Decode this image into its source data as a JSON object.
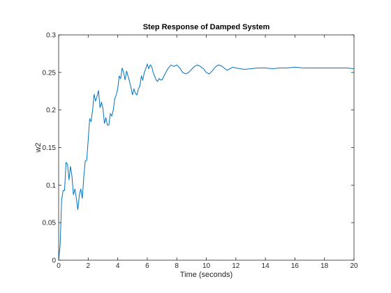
{
  "chart_data": {
    "type": "line",
    "title": "Step Response of Damped System",
    "xlabel": "Time (seconds)",
    "ylabel": "w2",
    "xlim": [
      0,
      20
    ],
    "ylim": [
      0,
      0.3
    ],
    "xticks": [
      0,
      2,
      4,
      6,
      8,
      10,
      12,
      14,
      16,
      18,
      20
    ],
    "yticks": [
      0,
      0.05,
      0.1,
      0.15,
      0.2,
      0.25,
      0.3
    ],
    "xtick_labels": [
      "0",
      "2",
      "4",
      "6",
      "8",
      "10",
      "12",
      "14",
      "16",
      "18",
      "20"
    ],
    "ytick_labels": [
      "0",
      "0.05",
      "0.1",
      "0.15",
      "0.2",
      "0.25",
      "0.3"
    ],
    "grid": false,
    "line_color": "#0072BD",
    "series": [
      {
        "x": [
          0,
          0.1,
          0.2,
          0.3,
          0.4,
          0.5,
          0.6,
          0.7,
          0.8,
          0.9,
          1.0,
          1.1,
          1.2,
          1.3,
          1.4,
          1.5,
          1.6,
          1.7,
          1.8,
          1.9,
          2.0,
          2.1,
          2.2,
          2.3,
          2.4,
          2.5,
          2.6,
          2.7,
          2.8,
          2.9,
          3.0,
          3.1,
          3.2,
          3.3,
          3.4,
          3.5,
          3.6,
          3.7,
          3.8,
          3.9,
          4.0,
          4.1,
          4.2,
          4.3,
          4.4,
          4.5,
          4.6,
          4.7,
          4.8,
          4.9,
          5.0,
          5.1,
          5.2,
          5.3,
          5.4,
          5.5,
          5.6,
          5.7,
          5.8,
          5.9,
          6.0,
          6.1,
          6.2,
          6.3,
          6.4,
          6.5,
          6.6,
          6.7,
          6.8,
          6.9,
          7.0,
          7.2,
          7.4,
          7.6,
          7.8,
          8.0,
          8.2,
          8.4,
          8.6,
          8.8,
          9.0,
          9.2,
          9.4,
          9.6,
          9.8,
          10.0,
          10.2,
          10.4,
          10.6,
          10.8,
          11.0,
          11.2,
          11.4,
          11.6,
          11.8,
          12.0,
          12.3,
          12.6,
          13.0,
          13.5,
          14.0,
          14.5,
          15.0,
          15.5,
          16.0,
          16.5,
          17.0,
          17.5,
          18.0,
          18.5,
          19.0,
          19.5,
          20.0
        ],
        "y": [
          0,
          0.02,
          0.08,
          0.093,
          0.093,
          0.13,
          0.128,
          0.107,
          0.125,
          0.112,
          0.087,
          0.095,
          0.082,
          0.067,
          0.087,
          0.095,
          0.082,
          0.11,
          0.132,
          0.133,
          0.16,
          0.188,
          0.185,
          0.2,
          0.221,
          0.212,
          0.218,
          0.226,
          0.203,
          0.21,
          0.202,
          0.182,
          0.19,
          0.18,
          0.18,
          0.195,
          0.192,
          0.2,
          0.215,
          0.22,
          0.228,
          0.245,
          0.242,
          0.256,
          0.25,
          0.24,
          0.252,
          0.245,
          0.238,
          0.23,
          0.22,
          0.228,
          0.222,
          0.22,
          0.228,
          0.232,
          0.245,
          0.24,
          0.25,
          0.255,
          0.261,
          0.255,
          0.26,
          0.258,
          0.25,
          0.245,
          0.24,
          0.238,
          0.242,
          0.24,
          0.24,
          0.248,
          0.255,
          0.26,
          0.258,
          0.26,
          0.256,
          0.25,
          0.248,
          0.25,
          0.254,
          0.258,
          0.26,
          0.258,
          0.255,
          0.25,
          0.248,
          0.252,
          0.257,
          0.26,
          0.259,
          0.256,
          0.253,
          0.255,
          0.257,
          0.256,
          0.255,
          0.254,
          0.255,
          0.256,
          0.256,
          0.255,
          0.256,
          0.256,
          0.257,
          0.256,
          0.256,
          0.256,
          0.256,
          0.256,
          0.256,
          0.256,
          0.255
        ]
      }
    ]
  }
}
